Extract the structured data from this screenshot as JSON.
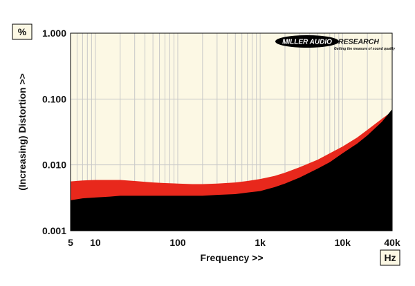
{
  "chart_data": {
    "type": "area",
    "title": "",
    "xlabel": "Frequency >>",
    "ylabel": "(Increasing) Distortion >>",
    "x_unit": "Hz",
    "y_unit": "%",
    "x_scale": "log",
    "y_scale": "log",
    "xlim": [
      5,
      40000
    ],
    "ylim": [
      0.001,
      1.0
    ],
    "grid": true,
    "x_ticks": [
      {
        "value": 5,
        "label": "5"
      },
      {
        "value": 10,
        "label": "10"
      },
      {
        "value": 100,
        "label": "100"
      },
      {
        "value": 1000,
        "label": "1k"
      },
      {
        "value": 10000,
        "label": "10k"
      },
      {
        "value": 40000,
        "label": "40k"
      }
    ],
    "y_ticks": [
      {
        "value": 1.0,
        "label": "1.000"
      },
      {
        "value": 0.1,
        "label": "0.100"
      },
      {
        "value": 0.01,
        "label": "0.010"
      },
      {
        "value": 0.001,
        "label": "0.001"
      }
    ],
    "colors": {
      "background": "#fcf8e4",
      "grid": "#c8c8c8",
      "upper_band": "#e8281c",
      "lower_area": "#000000"
    },
    "series": [
      {
        "x": [
          5,
          7,
          10,
          15,
          20,
          30,
          50,
          70,
          100,
          150,
          200,
          300,
          500,
          700,
          1000,
          1500,
          2000,
          3000,
          5000,
          7000,
          10000,
          15000,
          20000,
          30000,
          40000
        ],
        "values": [
          0.0056,
          0.0058,
          0.0059,
          0.0059,
          0.0059,
          0.0057,
          0.0054,
          0.0053,
          0.0052,
          0.0051,
          0.0051,
          0.0052,
          0.0054,
          0.0057,
          0.0061,
          0.0068,
          0.0076,
          0.0092,
          0.012,
          0.015,
          0.019,
          0.026,
          0.034,
          0.05,
          0.065
        ]
      },
      {
        "x": [
          5,
          7,
          10,
          15,
          20,
          30,
          50,
          70,
          100,
          150,
          200,
          300,
          500,
          700,
          1000,
          1500,
          2000,
          3000,
          5000,
          7000,
          10000,
          15000,
          20000,
          30000,
          40000
        ],
        "values": [
          0.0029,
          0.0031,
          0.0032,
          0.0033,
          0.0034,
          0.0034,
          0.0034,
          0.0034,
          0.0034,
          0.0034,
          0.0034,
          0.0035,
          0.0036,
          0.0038,
          0.004,
          0.0046,
          0.0052,
          0.0064,
          0.0088,
          0.011,
          0.015,
          0.021,
          0.028,
          0.045,
          0.07
        ]
      }
    ]
  },
  "logo": {
    "left_text": "MILLER AUDIO",
    "right_text": "RESEARCH",
    "tagline": "Getting the measure of sound quality"
  }
}
